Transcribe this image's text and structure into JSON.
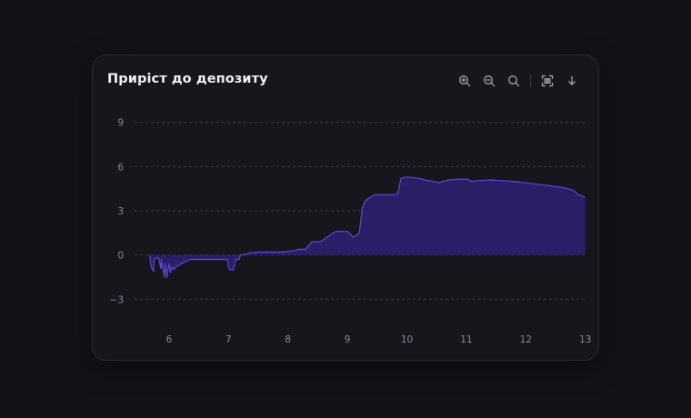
{
  "chart_data": {
    "type": "area",
    "title": "Приріст до депозиту",
    "xlabel": "",
    "ylabel": "",
    "xlim": [
      5.45,
      13.05
    ],
    "ylim": [
      -3.6,
      9.6
    ],
    "x_ticks": [
      "6",
      "7",
      "8",
      "9",
      "10",
      "11",
      "12",
      "13"
    ],
    "x_tick_values": [
      6,
      7,
      8,
      9,
      10,
      11,
      12,
      13
    ],
    "y_ticks": [
      "9",
      "6",
      "3",
      "0",
      "−3"
    ],
    "y_tick_values": [
      9,
      6,
      3,
      0,
      -3
    ],
    "grid": "horizontal-dashed",
    "legend": "none",
    "series": [
      {
        "points": [
          [
            5.67,
            0
          ],
          [
            5.68,
            -0.2
          ],
          [
            5.7,
            -0.8
          ],
          [
            5.72,
            -1.0
          ],
          [
            5.74,
            -1.1
          ],
          [
            5.75,
            -0.3
          ],
          [
            5.78,
            -0.2
          ],
          [
            5.82,
            -0.2
          ],
          [
            5.84,
            -0.5
          ],
          [
            5.86,
            -0.9
          ],
          [
            5.87,
            -0.3
          ],
          [
            5.88,
            -0.8
          ],
          [
            5.9,
            -1.0
          ],
          [
            5.92,
            -1.5
          ],
          [
            5.93,
            -0.6
          ],
          [
            5.95,
            -1.2
          ],
          [
            5.96,
            -1.55
          ],
          [
            5.98,
            -1.0
          ],
          [
            6.0,
            -0.6
          ],
          [
            6.02,
            -1.2
          ],
          [
            6.05,
            -0.8
          ],
          [
            6.08,
            -1.0
          ],
          [
            6.12,
            -0.8
          ],
          [
            6.2,
            -0.6
          ],
          [
            6.3,
            -0.4
          ],
          [
            6.35,
            -0.3
          ],
          [
            6.5,
            -0.3
          ],
          [
            6.7,
            -0.3
          ],
          [
            6.9,
            -0.3
          ],
          [
            6.98,
            -0.3
          ],
          [
            7.0,
            -0.8
          ],
          [
            7.02,
            -1.0
          ],
          [
            7.08,
            -1.0
          ],
          [
            7.1,
            -0.7
          ],
          [
            7.12,
            -0.3
          ],
          [
            7.18,
            -0.3
          ],
          [
            7.2,
            0
          ],
          [
            7.3,
            0.05
          ],
          [
            7.35,
            0.15
          ],
          [
            7.5,
            0.2
          ],
          [
            7.7,
            0.2
          ],
          [
            7.9,
            0.2
          ],
          [
            8.0,
            0.25
          ],
          [
            8.1,
            0.3
          ],
          [
            8.2,
            0.4
          ],
          [
            8.3,
            0.4
          ],
          [
            8.4,
            0.9
          ],
          [
            8.55,
            0.9
          ],
          [
            8.65,
            1.2
          ],
          [
            8.8,
            1.6
          ],
          [
            9.0,
            1.6
          ],
          [
            9.1,
            1.2
          ],
          [
            9.2,
            1.5
          ],
          [
            9.25,
            3.2
          ],
          [
            9.3,
            3.7
          ],
          [
            9.38,
            3.9
          ],
          [
            9.45,
            4.1
          ],
          [
            9.6,
            4.1
          ],
          [
            9.8,
            4.1
          ],
          [
            9.85,
            4.2
          ],
          [
            9.9,
            5.2
          ],
          [
            10.0,
            5.3
          ],
          [
            10.2,
            5.2
          ],
          [
            10.3,
            5.1
          ],
          [
            10.45,
            5.0
          ],
          [
            10.55,
            4.9
          ],
          [
            10.6,
            5.0
          ],
          [
            10.7,
            5.1
          ],
          [
            10.9,
            5.15
          ],
          [
            11.0,
            5.15
          ],
          [
            11.1,
            5.0
          ],
          [
            11.2,
            5.05
          ],
          [
            11.4,
            5.1
          ],
          [
            11.6,
            5.05
          ],
          [
            11.8,
            5.0
          ],
          [
            12.0,
            4.9
          ],
          [
            12.2,
            4.8
          ],
          [
            12.4,
            4.7
          ],
          [
            12.6,
            4.6
          ],
          [
            12.8,
            4.4
          ],
          [
            12.88,
            4.1
          ],
          [
            12.95,
            4.0
          ],
          [
            13.0,
            3.9
          ]
        ]
      }
    ]
  },
  "toolbar": {
    "tools": [
      "zoom-in-icon",
      "zoom-out-icon",
      "magnifier-reset-icon",
      "screenshot-icon",
      "download-icon"
    ]
  },
  "colors": {
    "card_bg": "#17161d",
    "grid": "#3b3a44",
    "area_fill": "#2a1f66",
    "area_stroke": "#5b48d8",
    "tick_text": "#8a8896",
    "title": "#f1f0f5",
    "icon": "#a5a3b0"
  }
}
